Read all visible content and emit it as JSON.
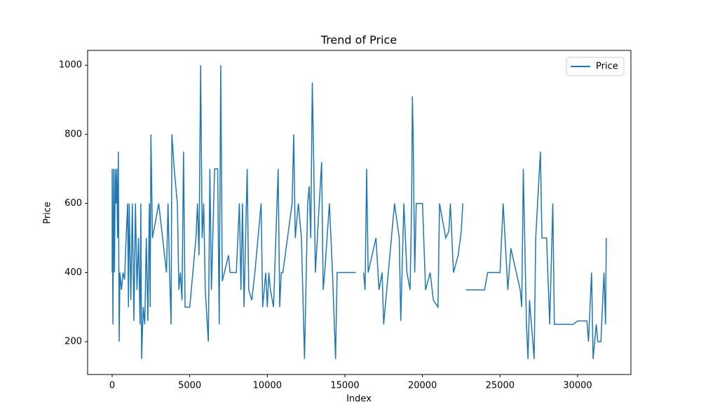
{
  "chart_data": {
    "type": "line",
    "title": "Trend of Price",
    "x_label": "Index",
    "y_label": "Price",
    "x": [
      0,
      0,
      50,
      100,
      150,
      200,
      250,
      300,
      350,
      400,
      450,
      500,
      600,
      700,
      800,
      900,
      1000,
      1050,
      1100,
      1200,
      1300,
      1400,
      1500,
      1600,
      1700,
      1800,
      1850,
      1900,
      2000,
      2100,
      2200,
      2300,
      2400,
      2450,
      2500,
      2600,
      3000,
      3500,
      3600,
      3700,
      3800,
      3850,
      4000,
      4200,
      4300,
      4400,
      4500,
      4600,
      4700,
      5000,
      5200,
      5400,
      5500,
      5600,
      5700,
      5800,
      5900,
      6000,
      6200,
      6300,
      6400,
      6600,
      6800,
      6900,
      7000,
      7100,
      7500,
      7600,
      8000,
      8200,
      8300,
      8400,
      8500,
      8700,
      8800,
      9000,
      9200,
      9600,
      9700,
      9900,
      10000,
      10100,
      10200,
      10400,
      10700,
      10800,
      10900,
      11000,
      11600,
      11700,
      11800,
      12000,
      12200,
      12400,
      12600,
      12700,
      12800,
      12900,
      13000,
      13100,
      13500,
      13600,
      13700,
      14000,
      14200,
      14400,
      14500,
      15700,
      15950,
      16200,
      16300,
      16400,
      16500,
      17000,
      17200,
      17400,
      17500,
      18200,
      18500,
      18600,
      18800,
      19000,
      19200,
      19300,
      19350,
      19400,
      19500,
      19600,
      20000,
      20200,
      20500,
      20700,
      21000,
      21100,
      21500,
      21700,
      21800,
      22000,
      22300,
      22500,
      22600,
      22700,
      22800,
      23200,
      24000,
      24200,
      25000,
      25200,
      25500,
      25700,
      26300,
      26400,
      26500,
      26700,
      26800,
      26900,
      27200,
      27300,
      27600,
      27700,
      28000,
      28200,
      28400,
      28500,
      29000,
      29700,
      30000,
      30600,
      30700,
      30900,
      31000,
      31100,
      31200,
      31300,
      31500,
      31600,
      31700,
      31800,
      31850
    ],
    "series": [
      {
        "name": "Price",
        "color": "#1f77b4",
        "values": [
          400,
          700,
          250,
          700,
          400,
          700,
          600,
          700,
          500,
          750,
          200,
          400,
          350,
          400,
          380,
          500,
          600,
          300,
          600,
          320,
          600,
          260,
          600,
          350,
          500,
          250,
          600,
          150,
          300,
          250,
          500,
          260,
          600,
          300,
          800,
          500,
          600,
          400,
          600,
          400,
          250,
          800,
          700,
          600,
          350,
          400,
          320,
          750,
          300,
          300,
          400,
          500,
          600,
          450,
          1000,
          500,
          600,
          350,
          200,
          700,
          350,
          700,
          700,
          250,
          1000,
          375,
          450,
          400,
          400,
          600,
          350,
          600,
          300,
          700,
          350,
          320,
          400,
          600,
          300,
          400,
          300,
          400,
          350,
          300,
          700,
          300,
          400,
          400,
          600,
          800,
          500,
          600,
          500,
          150,
          600,
          650,
          500,
          950,
          700,
          400,
          720,
          350,
          400,
          600,
          400,
          150,
          400,
          400,
          null,
          400,
          350,
          700,
          400,
          500,
          350,
          400,
          250,
          600,
          500,
          260,
          600,
          400,
          350,
          600,
          910,
          800,
          400,
          600,
          600,
          350,
          400,
          320,
          300,
          600,
          500,
          520,
          600,
          400,
          450,
          520,
          600,
          null,
          350,
          350,
          350,
          400,
          400,
          600,
          350,
          470,
          350,
          300,
          700,
          250,
          150,
          320,
          150,
          500,
          750,
          500,
          500,
          250,
          600,
          250,
          250,
          250,
          260,
          260,
          200,
          400,
          150,
          200,
          250,
          200,
          200,
          300,
          400,
          250,
          500
        ]
      }
    ],
    "xlim": [
      -1581,
      33434
    ],
    "ylim": [
      105,
      1043
    ],
    "xticks": [
      0,
      5000,
      10000,
      15000,
      20000,
      25000,
      30000
    ],
    "yticks": [
      200,
      400,
      600,
      800,
      1000
    ],
    "legend": "upper right"
  }
}
